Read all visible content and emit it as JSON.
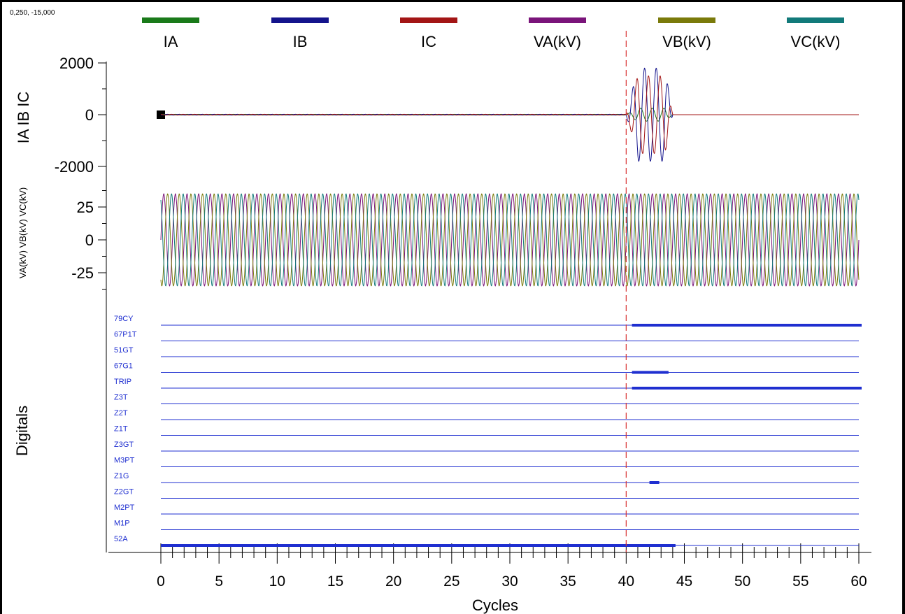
{
  "coordinate_readout": "0,250, -15,000",
  "colors": {
    "IA": "#1a7a1a",
    "IB": "#14148c",
    "IC": "#a31515",
    "VA": "#7a147a",
    "VB": "#7a7a0a",
    "VC": "#127a7a",
    "digital": "#1f2fd0",
    "cursor": "#d83030"
  },
  "chart_data": {
    "type": "line",
    "xlabel": "Cycles",
    "xlim": [
      0,
      60
    ],
    "xticks": [
      "0",
      "5",
      "10",
      "15",
      "20",
      "25",
      "30",
      "35",
      "40",
      "45",
      "50",
      "55",
      "60"
    ],
    "cursor_x": 40,
    "legend": [
      {
        "key": "IA",
        "label": "IA"
      },
      {
        "key": "IB",
        "label": "IB"
      },
      {
        "key": "IC",
        "label": "IC"
      },
      {
        "key": "VA",
        "label": "VA(kV)"
      },
      {
        "key": "VB",
        "label": "VB(kV)"
      },
      {
        "key": "VC",
        "label": "VC(kV)"
      }
    ],
    "current_panel": {
      "ylabel": "IA IB IC",
      "ylim": [
        -2200,
        2200
      ],
      "yticks": [
        "2000",
        "0",
        "-2000"
      ],
      "series": [
        {
          "key": "IA",
          "prefault_peak": 15,
          "fault_start": 40,
          "fault_end": 44,
          "fault_peak": 250
        },
        {
          "key": "IB",
          "prefault_peak": 15,
          "fault_start": 40,
          "fault_end": 44,
          "fault_peak": 1800
        },
        {
          "key": "IC",
          "prefault_peak": 15,
          "fault_start": 40,
          "fault_end": 44,
          "fault_peak": 1500
        }
      ]
    },
    "voltage_panel": {
      "ylabel": "VA(kV) VB(kV) VC(kV)",
      "ylim": [
        -45,
        45
      ],
      "yticks": [
        "25",
        "0",
        "-25"
      ],
      "peak": 35,
      "series": [
        "VA",
        "VB",
        "VC"
      ]
    },
    "digital_panel": {
      "ylabel": "Digitals",
      "channels": [
        {
          "name": "79CY",
          "on": [
            [
              40.5,
              60
            ]
          ]
        },
        {
          "name": "67P1T",
          "on": []
        },
        {
          "name": "51GT",
          "on": []
        },
        {
          "name": "67G1",
          "on": [
            [
              40.5,
              43.4
            ]
          ]
        },
        {
          "name": "TRIP",
          "on": [
            [
              40.5,
              60
            ]
          ]
        },
        {
          "name": "Z3T",
          "on": []
        },
        {
          "name": "Z2T",
          "on": []
        },
        {
          "name": "Z1T",
          "on": []
        },
        {
          "name": "Z3GT",
          "on": []
        },
        {
          "name": "M3PT",
          "on": []
        },
        {
          "name": "Z1G",
          "on": [
            [
              42,
              42.6
            ]
          ]
        },
        {
          "name": "Z2GT",
          "on": []
        },
        {
          "name": "M2PT",
          "on": []
        },
        {
          "name": "M1P",
          "on": []
        },
        {
          "name": "52A",
          "on": [
            [
              0,
              44
            ]
          ]
        }
      ]
    }
  }
}
